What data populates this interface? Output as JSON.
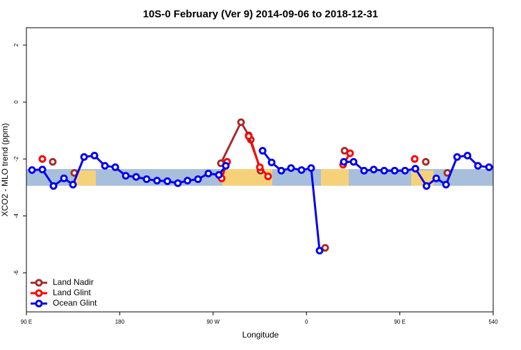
{
  "chart_data": {
    "type": "line",
    "title": "10S-0 February (Ver 9)   2014-09-06 to 2018-12-31",
    "x_label": "Longitude",
    "y_label": "XCO2 - MLO trend (ppm)",
    "xlim": [
      90,
      540
    ],
    "xticks": [
      {
        "value": 90,
        "label": "90 E"
      },
      180,
      {
        "value": 270,
        "label": "90 W"
      },
      {
        "value": 360,
        "label": "0"
      },
      {
        "value": 450,
        "label": "90 E"
      },
      540
    ],
    "ylim": [
      -7.37,
      2.61
    ],
    "yticks": [
      2,
      0,
      -2,
      -4,
      -6
    ],
    "legend": "bottom-left",
    "series": [
      {
        "name": "Land Nadir",
        "color": "#a52a2a",
        "x": [
          115.4,
          null,
          136.2,
          null,
          277.5,
          296.9,
          304.3,
          306.3,
          315.7,
          null,
          378.0,
          null,
          396.7,
          null,
          475.0,
          null,
          495.8
        ],
        "values": [
          -2.1,
          null,
          -2.49,
          null,
          -2.15,
          -0.71,
          -1.17,
          -1.32,
          -2.41,
          null,
          -5.12,
          null,
          -1.71,
          null,
          -2.1,
          null,
          -2.49
        ]
      },
      {
        "name": "Land Glint",
        "color": "#ff0000",
        "x": [
          105.4,
          null,
          278.2,
          283.5,
          null,
          304.3,
          315.0,
          323.0,
          null,
          395.3,
          402.0,
          null,
          464.3
        ],
        "values": [
          -2.0,
          null,
          -2.68,
          -2.1,
          null,
          -1.2,
          -2.29,
          -2.61,
          null,
          -2.2,
          -1.8,
          null,
          -2.0
        ]
      },
      {
        "name": "Ocean Glint",
        "color": "#0000ee",
        "x": [
          95.4,
          105.4,
          116.1,
          126.2,
          134.9,
          145.6,
          155.6,
          165.7,
          175.7,
          185.8,
          195.8,
          205.9,
          215.9,
          225.9,
          236.0,
          245.3,
          255.4,
          265.4,
          275.5,
          282.2,
          null,
          317.7,
          326.4,
          335.7,
          345.1,
          355.2,
          364.5,
          372.6,
          null,
          396.0,
          405.4,
          415.5,
          424.8,
          434.9,
          445.0,
          455.0,
          465.0,
          475.7,
          485.1,
          494.5,
          505.2,
          515.2,
          525.3,
          536.0
        ],
        "values": [
          -2.39,
          -2.37,
          -2.95,
          -2.68,
          -2.9,
          -1.93,
          -1.88,
          -2.24,
          -2.29,
          -2.59,
          -2.63,
          -2.71,
          -2.76,
          -2.78,
          -2.85,
          -2.76,
          -2.71,
          -2.51,
          -2.56,
          -2.24,
          null,
          -1.71,
          -2.12,
          -2.41,
          -2.32,
          -2.39,
          -2.32,
          -5.22,
          null,
          -2.1,
          -2.1,
          -2.41,
          -2.37,
          -2.41,
          -2.41,
          -2.41,
          -2.34,
          -2.95,
          -2.68,
          -2.9,
          -1.93,
          -1.88,
          -2.24,
          -2.29
        ]
      }
    ]
  }
}
